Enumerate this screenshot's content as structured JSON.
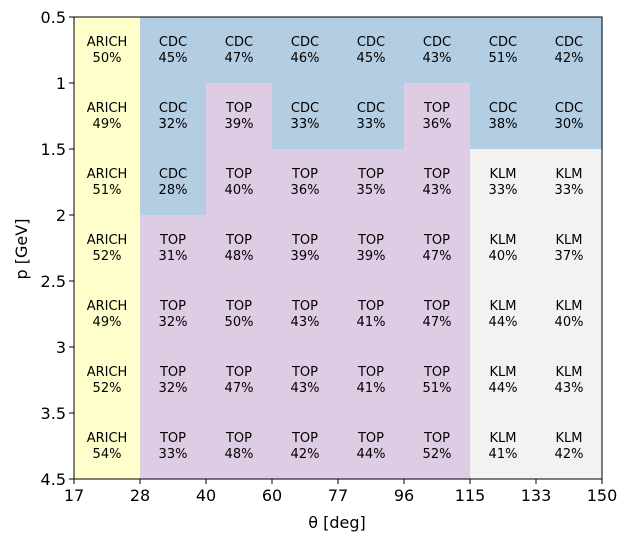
{
  "chart_data": {
    "type": "heatmap",
    "xlabel": "θ [deg]",
    "ylabel": "p [GeV]",
    "x_ticks": [
      "17",
      "28",
      "40",
      "60",
      "77",
      "96",
      "115",
      "133",
      "150"
    ],
    "y_ticks": [
      "0.5",
      "1",
      "1.5",
      "2",
      "2.5",
      "3",
      "3.5",
      "4.5"
    ],
    "detector_colors": {
      "ARICH": "#ffffcc",
      "CDC": "#b3cde3",
      "TOP": "#decbe4",
      "KLM": "#f2f2f2"
    },
    "rows": [
      [
        {
          "det": "ARICH",
          "pct": "50%"
        },
        {
          "det": "CDC",
          "pct": "45%"
        },
        {
          "det": "CDC",
          "pct": "47%"
        },
        {
          "det": "CDC",
          "pct": "46%"
        },
        {
          "det": "CDC",
          "pct": "45%"
        },
        {
          "det": "CDC",
          "pct": "43%"
        },
        {
          "det": "CDC",
          "pct": "51%"
        },
        {
          "det": "CDC",
          "pct": "42%"
        }
      ],
      [
        {
          "det": "ARICH",
          "pct": "49%"
        },
        {
          "det": "CDC",
          "pct": "32%"
        },
        {
          "det": "TOP",
          "pct": "39%"
        },
        {
          "det": "CDC",
          "pct": "33%"
        },
        {
          "det": "CDC",
          "pct": "33%"
        },
        {
          "det": "TOP",
          "pct": "36%"
        },
        {
          "det": "CDC",
          "pct": "38%"
        },
        {
          "det": "CDC",
          "pct": "30%"
        }
      ],
      [
        {
          "det": "ARICH",
          "pct": "51%"
        },
        {
          "det": "CDC",
          "pct": "28%"
        },
        {
          "det": "TOP",
          "pct": "40%"
        },
        {
          "det": "TOP",
          "pct": "36%"
        },
        {
          "det": "TOP",
          "pct": "35%"
        },
        {
          "det": "TOP",
          "pct": "43%"
        },
        {
          "det": "KLM",
          "pct": "33%"
        },
        {
          "det": "KLM",
          "pct": "33%"
        }
      ],
      [
        {
          "det": "ARICH",
          "pct": "52%"
        },
        {
          "det": "TOP",
          "pct": "31%"
        },
        {
          "det": "TOP",
          "pct": "48%"
        },
        {
          "det": "TOP",
          "pct": "39%"
        },
        {
          "det": "TOP",
          "pct": "39%"
        },
        {
          "det": "TOP",
          "pct": "47%"
        },
        {
          "det": "KLM",
          "pct": "40%"
        },
        {
          "det": "KLM",
          "pct": "37%"
        }
      ],
      [
        {
          "det": "ARICH",
          "pct": "49%"
        },
        {
          "det": "TOP",
          "pct": "32%"
        },
        {
          "det": "TOP",
          "pct": "50%"
        },
        {
          "det": "TOP",
          "pct": "43%"
        },
        {
          "det": "TOP",
          "pct": "41%"
        },
        {
          "det": "TOP",
          "pct": "47%"
        },
        {
          "det": "KLM",
          "pct": "44%"
        },
        {
          "det": "KLM",
          "pct": "40%"
        }
      ],
      [
        {
          "det": "ARICH",
          "pct": "52%"
        },
        {
          "det": "TOP",
          "pct": "32%"
        },
        {
          "det": "TOP",
          "pct": "47%"
        },
        {
          "det": "TOP",
          "pct": "43%"
        },
        {
          "det": "TOP",
          "pct": "41%"
        },
        {
          "det": "TOP",
          "pct": "51%"
        },
        {
          "det": "KLM",
          "pct": "44%"
        },
        {
          "det": "KLM",
          "pct": "43%"
        }
      ],
      [
        {
          "det": "ARICH",
          "pct": "54%"
        },
        {
          "det": "TOP",
          "pct": "33%"
        },
        {
          "det": "TOP",
          "pct": "48%"
        },
        {
          "det": "TOP",
          "pct": "42%"
        },
        {
          "det": "TOP",
          "pct": "44%"
        },
        {
          "det": "TOP",
          "pct": "52%"
        },
        {
          "det": "KLM",
          "pct": "41%"
        },
        {
          "det": "KLM",
          "pct": "42%"
        }
      ]
    ]
  }
}
